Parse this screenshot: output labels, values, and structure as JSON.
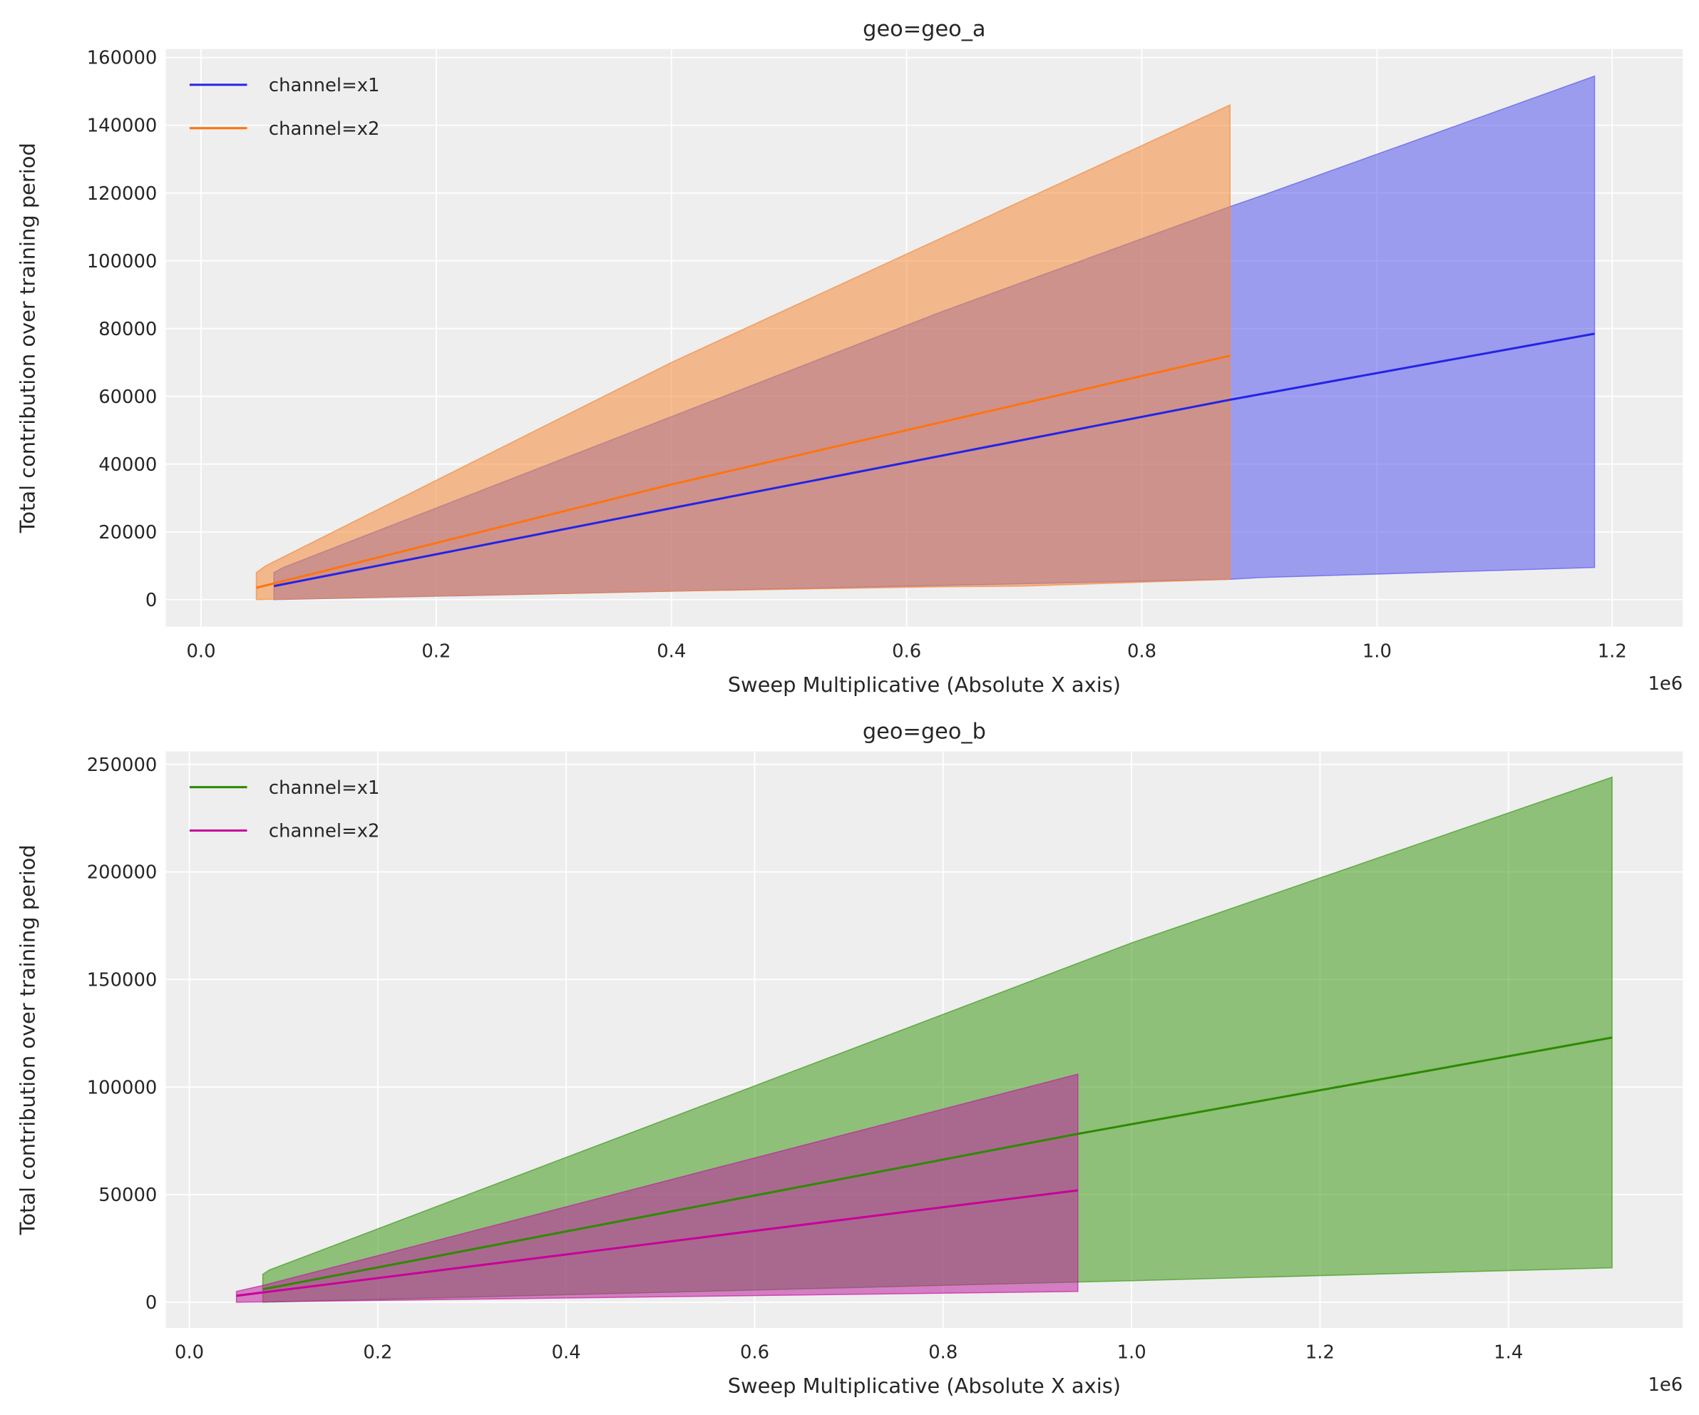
{
  "chart_data": [
    {
      "type": "area",
      "title": "geo=geo_a",
      "xlabel": "Sweep Multiplicative (Absolute X axis)",
      "ylabel": "Total contribution over training period",
      "x_offset_label": "1e6",
      "xlim": [
        -0.03,
        1.26
      ],
      "ylim": [
        -8000,
        162500
      ],
      "xticks": [
        0.0,
        0.2,
        0.4,
        0.6,
        0.8,
        1.0,
        1.2
      ],
      "xtick_labels": [
        "0.0",
        "0.2",
        "0.4",
        "0.6",
        "0.8",
        "1.0",
        "1.2"
      ],
      "yticks": [
        0,
        20000,
        40000,
        60000,
        80000,
        100000,
        120000,
        140000,
        160000
      ],
      "ytick_labels": [
        "0",
        "20000",
        "40000",
        "60000",
        "80000",
        "100000",
        "120000",
        "140000",
        "160000"
      ],
      "grid": true,
      "legend_position": "top-left",
      "series": [
        {
          "name": "channel=x1",
          "color": "#2424e6",
          "fill": "#5a5af0",
          "mean": [
            [
              0.062,
              4000
            ],
            [
              0.4,
              27000
            ],
            [
              0.875,
              59000
            ],
            [
              1.185,
              78500
            ]
          ],
          "upper": [
            [
              0.062,
              8000
            ],
            [
              0.07,
              9500
            ],
            [
              0.4,
              54000
            ],
            [
              0.63,
              85000
            ],
            [
              0.875,
              116000
            ],
            [
              0.9,
              119000
            ],
            [
              1.185,
              154500
            ]
          ],
          "lower": [
            [
              0.062,
              0
            ],
            [
              0.4,
              2500
            ],
            [
              0.875,
              6000
            ],
            [
              0.9,
              6500
            ],
            [
              1.185,
              9500
            ]
          ]
        },
        {
          "name": "channel=x2",
          "color": "#ff7410",
          "fill": "#f58a3a",
          "mean": [
            [
              0.047,
              3500
            ],
            [
              0.4,
              34000
            ],
            [
              0.875,
              72000
            ]
          ],
          "upper": [
            [
              0.047,
              8000
            ],
            [
              0.055,
              10000
            ],
            [
              0.4,
              70000
            ],
            [
              0.875,
              146000
            ]
          ],
          "lower": [
            [
              0.047,
              0
            ],
            [
              0.4,
              2500
            ],
            [
              0.63,
              3800
            ],
            [
              0.7,
              4000
            ],
            [
              0.875,
              6000
            ]
          ]
        }
      ]
    },
    {
      "type": "area",
      "title": "geo=geo_b",
      "xlabel": "Sweep Multiplicative (Absolute X axis)",
      "ylabel": "Total contribution over training period",
      "x_offset_label": "1e6",
      "xlim": [
        -0.025,
        1.585
      ],
      "ylim": [
        -12000,
        256000
      ],
      "xticks": [
        0.0,
        0.2,
        0.4,
        0.6,
        0.8,
        1.0,
        1.2,
        1.4
      ],
      "xtick_labels": [
        "0.0",
        "0.2",
        "0.4",
        "0.6",
        "0.8",
        "1.0",
        "1.2",
        "1.4"
      ],
      "yticks": [
        0,
        50000,
        100000,
        150000,
        200000,
        250000
      ],
      "ytick_labels": [
        "0",
        "50000",
        "100000",
        "150000",
        "200000",
        "250000"
      ],
      "grid": true,
      "legend_position": "top-left",
      "series": [
        {
          "name": "channel=x1",
          "color": "#2e8a00",
          "fill": "#3f9a1a",
          "mean": [
            [
              0.078,
              6000
            ],
            [
              0.94,
              78000
            ],
            [
              1.51,
              123000
            ]
          ],
          "upper": [
            [
              0.078,
              13000
            ],
            [
              0.085,
              15000
            ],
            [
              1.0,
              167000
            ],
            [
              1.51,
              244000
            ]
          ],
          "lower": [
            [
              0.078,
              0
            ],
            [
              1.0,
              10000
            ],
            [
              1.51,
              16000
            ]
          ]
        },
        {
          "name": "channel=x2",
          "color": "#c8009a",
          "fill": "#c020a0",
          "mean": [
            [
              0.05,
              3000
            ],
            [
              0.943,
              52000
            ]
          ],
          "upper": [
            [
              0.05,
              5000
            ],
            [
              0.08,
              8000
            ],
            [
              0.943,
              106000
            ]
          ],
          "lower": [
            [
              0.05,
              0
            ],
            [
              0.943,
              5000
            ]
          ]
        }
      ]
    }
  ]
}
